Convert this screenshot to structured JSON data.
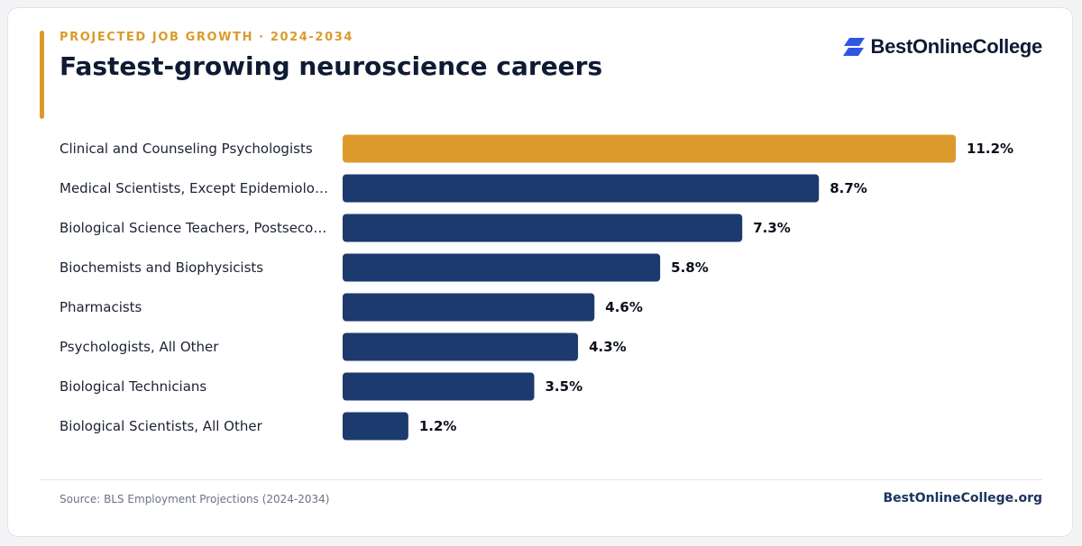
{
  "header": {
    "eyebrow": "PROJECTED JOB GROWTH · 2024-2034",
    "title": "Fastest-growing neuroscience careers"
  },
  "logo": {
    "text": "BestOnlineCollege",
    "icon": "stacked-parallelogram-logo-icon",
    "color": "#2f55e4"
  },
  "colors": {
    "highlight": "#dc9a2a",
    "bar": "#1d3a6e",
    "accent": "#dc9a2a"
  },
  "chart_data": {
    "type": "bar",
    "orientation": "horizontal",
    "categories": [
      "Clinical and Counseling Psychologists",
      "Medical Scientists, Except Epidemiolo…",
      "Biological Science Teachers, Postseco…",
      "Biochemists and Biophysicists",
      "Pharmacists",
      "Psychologists, All Other",
      "Biological Technicians",
      "Biological Scientists, All Other"
    ],
    "values": [
      11.2,
      8.7,
      7.3,
      5.8,
      4.6,
      4.3,
      3.5,
      1.2
    ],
    "value_labels": [
      "11.2%",
      "8.7%",
      "7.3%",
      "5.8%",
      "4.6%",
      "4.3%",
      "3.5%",
      "1.2%"
    ],
    "highlight_index": 0,
    "xlim": [
      0,
      11.2
    ],
    "grid": false,
    "unit": "%"
  },
  "footer": {
    "source": "Source: BLS Employment Projections (2024-2034)",
    "site": "BestOnlineCollege.org"
  }
}
